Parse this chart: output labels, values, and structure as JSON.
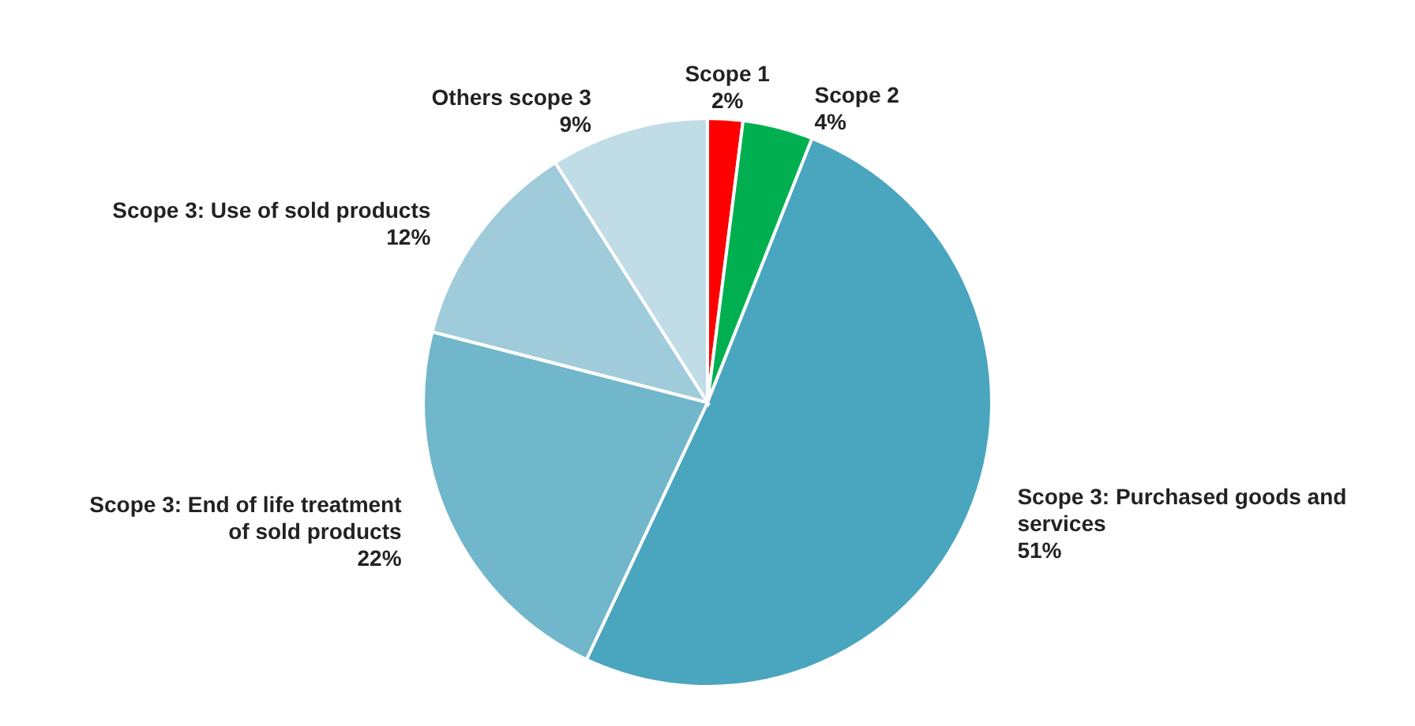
{
  "chart_data": {
    "type": "pie",
    "categories": [
      "Scope 1",
      "Scope 2",
      "Scope 3: Purchased goods and services",
      "Scope 3: End of life treatment of sold products",
      "Scope 3: Use of sold products",
      "Others scope 3"
    ],
    "values": [
      2,
      4,
      51,
      22,
      12,
      9
    ],
    "colors": [
      "#ff0000",
      "#00b050",
      "#4aa5bf",
      "#71b7cb",
      "#9fcbdb",
      "#c0dce6"
    ],
    "value_labels": [
      "2%",
      "4%",
      "51%",
      "22%",
      "12%",
      "9%"
    ],
    "legend": false
  }
}
